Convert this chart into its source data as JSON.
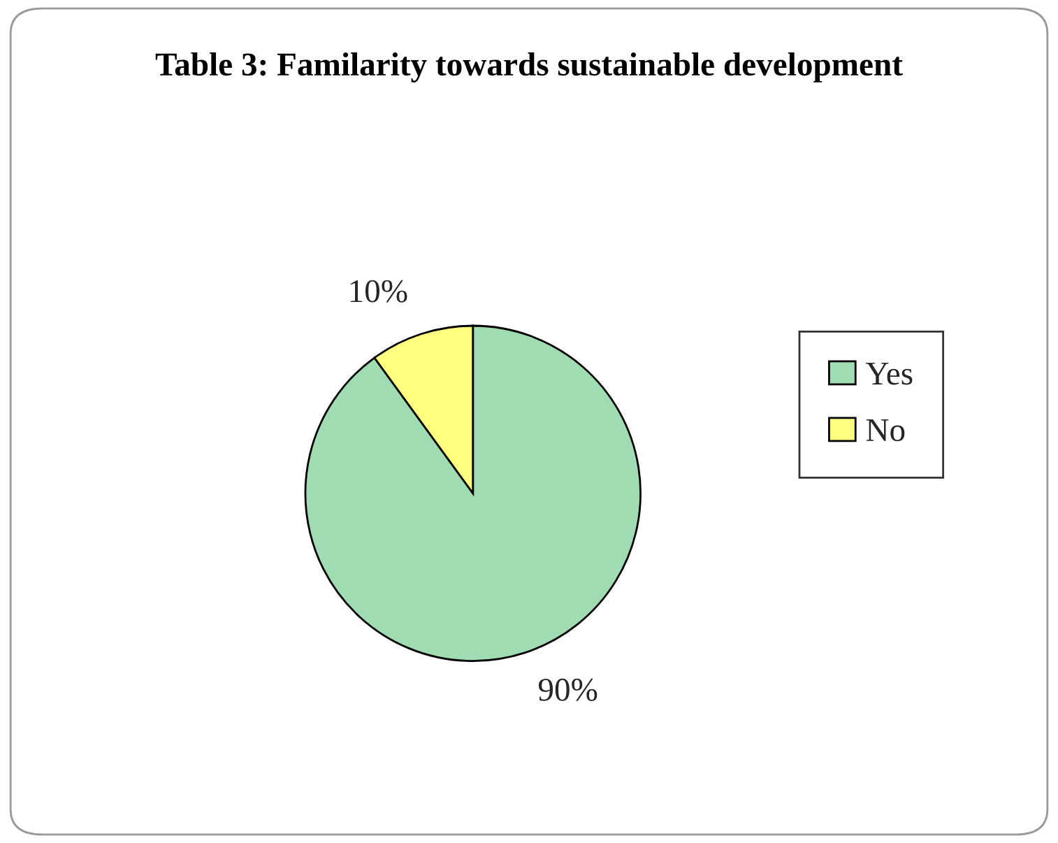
{
  "chart_data": {
    "type": "pie",
    "title": "Table 3: Familarity towards sustainable development",
    "categories": [
      "Yes",
      "No"
    ],
    "values": [
      90,
      10
    ],
    "colors": [
      "#a0dcb2",
      "#ffff80"
    ],
    "value_labels": [
      "90%",
      "10%"
    ],
    "legend": "right"
  }
}
